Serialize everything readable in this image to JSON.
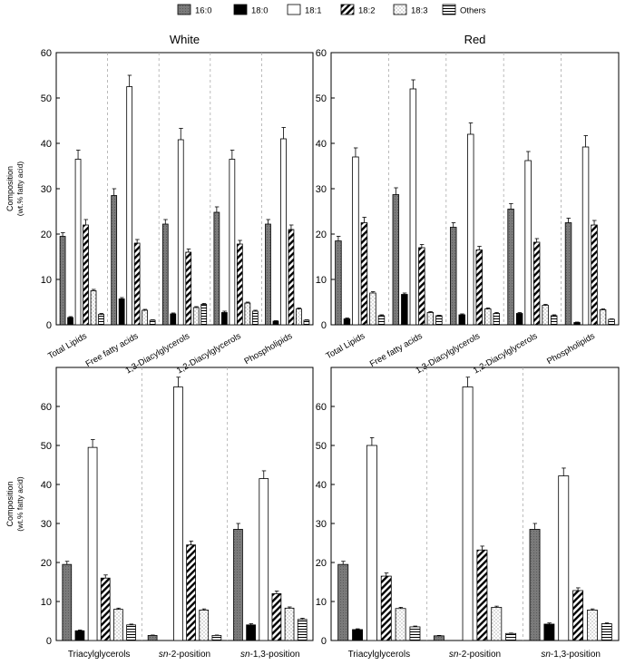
{
  "legend": {
    "items": [
      {
        "label": "16:0",
        "pattern": "p160"
      },
      {
        "label": "18:0",
        "pattern": "p180"
      },
      {
        "label": "18:1",
        "pattern": "p181"
      },
      {
        "label": "18:2",
        "pattern": "p182"
      },
      {
        "label": "18:3",
        "pattern": "p183"
      },
      {
        "label": "Others",
        "pattern": "poth"
      }
    ]
  },
  "colors": {
    "c160": "#7a7a7a",
    "c180": "#000000",
    "grid": "#aaaaaa"
  },
  "chart_data": [
    {
      "type": "bar",
      "title": "White",
      "ylabel": "Composition",
      "ylabel_sub": "(wt.% fatty acid)",
      "ylim": [
        0,
        60
      ],
      "yticks": [
        0,
        10,
        20,
        30,
        40,
        50,
        60
      ],
      "ytick_side": "left",
      "xtick_style": "rotated",
      "categories": [
        "Total Lipids",
        "Free fatty acids",
        "1,3-Diacylglycerols",
        "1,2-Diacylglycerols",
        "Phospholipids"
      ],
      "series": [
        {
          "name": "16:0",
          "values": [
            19.5,
            28.5,
            22.2,
            24.8,
            22.2
          ],
          "errors": [
            0.8,
            1.5,
            1.0,
            1.2,
            1.0
          ]
        },
        {
          "name": "18:0",
          "values": [
            1.6,
            5.7,
            2.4,
            2.7,
            0.8
          ],
          "errors": [
            0.2,
            0.3,
            0.2,
            0.3,
            0.1
          ]
        },
        {
          "name": "18:1",
          "values": [
            36.5,
            52.5,
            40.8,
            36.5,
            41.0
          ],
          "errors": [
            2.0,
            2.5,
            2.5,
            2.0,
            2.5
          ]
        },
        {
          "name": "18:2",
          "values": [
            22.0,
            18.0,
            16.0,
            17.8,
            21.0
          ],
          "errors": [
            1.2,
            0.8,
            0.7,
            0.8,
            1.0
          ]
        },
        {
          "name": "18:3",
          "values": [
            7.5,
            3.2,
            3.8,
            4.8,
            3.5
          ],
          "errors": [
            0.3,
            0.2,
            0.2,
            0.2,
            0.2
          ]
        },
        {
          "name": "Others",
          "values": [
            2.3,
            1.0,
            4.5,
            3.0,
            1.0
          ],
          "errors": [
            0.2,
            0.1,
            0.2,
            0.2,
            0.1
          ]
        }
      ]
    },
    {
      "type": "bar",
      "title": "Red",
      "ylabel": "",
      "ylabel_sub": "",
      "ylim": [
        0,
        60
      ],
      "yticks": [
        0,
        10,
        20,
        30,
        40,
        50,
        60
      ],
      "ytick_side": "left",
      "xtick_style": "rotated",
      "categories": [
        "Total Lipids",
        "Free fatty acids",
        "1,3-Diacylglycerols",
        "1,2-Diacylglycerols",
        "Phospholipids"
      ],
      "series": [
        {
          "name": "16:0",
          "values": [
            18.5,
            28.7,
            21.5,
            25.5,
            22.5
          ],
          "errors": [
            1.0,
            1.5,
            1.0,
            1.2,
            1.0
          ]
        },
        {
          "name": "18:0",
          "values": [
            1.3,
            6.7,
            2.2,
            2.5,
            0.5
          ],
          "errors": [
            0.2,
            0.3,
            0.2,
            0.2,
            0.1
          ]
        },
        {
          "name": "18:1",
          "values": [
            37.0,
            52.0,
            42.0,
            36.2,
            39.2
          ],
          "errors": [
            2.0,
            2.0,
            2.5,
            2.0,
            2.5
          ]
        },
        {
          "name": "18:2",
          "values": [
            22.5,
            17.0,
            16.5,
            18.2,
            22.0
          ],
          "errors": [
            1.2,
            0.7,
            0.8,
            0.8,
            1.0
          ]
        },
        {
          "name": "18:3",
          "values": [
            7.0,
            2.7,
            3.5,
            4.3,
            3.3
          ],
          "errors": [
            0.3,
            0.2,
            0.2,
            0.2,
            0.2
          ]
        },
        {
          "name": "Others",
          "values": [
            2.0,
            2.0,
            2.5,
            2.0,
            1.2
          ],
          "errors": [
            0.2,
            0.1,
            0.2,
            0.2,
            0.1
          ]
        }
      ]
    },
    {
      "type": "bar",
      "title": "",
      "ylabel": "Composition",
      "ylabel_sub": "(wt.% fatty acid)",
      "ylim": [
        0,
        70
      ],
      "yticks": [
        0,
        10,
        20,
        30,
        40,
        50,
        60
      ],
      "ytick_side": "left",
      "xtick_style": "flat",
      "categories": [
        "Triacylglycerols",
        "sn-2-position",
        "sn-1,3-position"
      ],
      "series": [
        {
          "name": "16:0",
          "values": [
            19.5,
            1.3,
            28.5
          ],
          "errors": [
            0.8,
            0.1,
            1.5
          ]
        },
        {
          "name": "18:0",
          "values": [
            2.5,
            0,
            4.0
          ],
          "errors": [
            0.2,
            0,
            0.3
          ]
        },
        {
          "name": "18:1",
          "values": [
            49.5,
            65.0,
            41.5
          ],
          "errors": [
            2.0,
            2.5,
            2.0
          ]
        },
        {
          "name": "18:2",
          "values": [
            16.0,
            24.5,
            12.0
          ],
          "errors": [
            0.8,
            1.0,
            0.7
          ]
        },
        {
          "name": "18:3",
          "values": [
            8.0,
            7.8,
            8.3
          ],
          "errors": [
            0.3,
            0.3,
            0.3
          ]
        },
        {
          "name": "Others",
          "values": [
            4.0,
            1.3,
            5.4
          ],
          "errors": [
            0.2,
            0.1,
            0.3
          ]
        }
      ]
    },
    {
      "type": "bar",
      "title": "",
      "ylabel": "",
      "ylabel_sub": "",
      "ylim": [
        0,
        70
      ],
      "yticks": [
        0,
        10,
        20,
        30,
        40,
        50,
        60
      ],
      "ytick_side": "left",
      "xtick_style": "flat",
      "categories": [
        "Triacylglycerols",
        "sn-2-position",
        "sn-1,3-position"
      ],
      "series": [
        {
          "name": "16:0",
          "values": [
            19.5,
            1.2,
            28.5
          ],
          "errors": [
            0.8,
            0.1,
            1.5
          ]
        },
        {
          "name": "18:0",
          "values": [
            2.8,
            0,
            4.2
          ],
          "errors": [
            0.2,
            0,
            0.3
          ]
        },
        {
          "name": "18:1",
          "values": [
            50.0,
            65.0,
            42.2
          ],
          "errors": [
            2.0,
            2.5,
            2.0
          ]
        },
        {
          "name": "18:2",
          "values": [
            16.5,
            23.2,
            12.8
          ],
          "errors": [
            0.8,
            1.0,
            0.7
          ]
        },
        {
          "name": "18:3",
          "values": [
            8.2,
            8.5,
            7.8
          ],
          "errors": [
            0.3,
            0.3,
            0.3
          ]
        },
        {
          "name": "Others",
          "values": [
            3.5,
            1.8,
            4.3
          ],
          "errors": [
            0.2,
            0.1,
            0.2
          ]
        }
      ]
    }
  ]
}
